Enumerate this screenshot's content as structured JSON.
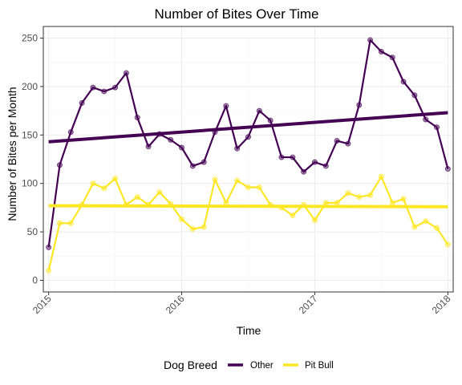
{
  "chart_data": {
    "type": "line",
    "title": "Number of Bites Over Time",
    "xlabel": "Time",
    "ylabel": "Number of Bites per Month",
    "xlim": [
      2014.96,
      2018.04
    ],
    "ylim": [
      -12,
      262
    ],
    "x_ticks": [
      2015,
      2016,
      2017,
      2018
    ],
    "x_tick_labels": [
      "2015",
      "2016",
      "2017",
      "2018"
    ],
    "y_ticks": [
      0,
      50,
      100,
      150,
      200,
      250
    ],
    "y_tick_labels": [
      "0",
      "50",
      "100",
      "150",
      "200",
      "250"
    ],
    "grid": true,
    "legend": {
      "title": "Dog Breed",
      "position": "bottom"
    },
    "series": [
      {
        "name": "Other",
        "color": "#440154",
        "values": [
          34,
          119,
          153,
          183,
          199,
          195,
          199,
          214,
          168,
          138,
          151,
          145,
          137,
          118,
          122,
          153,
          180,
          136,
          148,
          175,
          165,
          127,
          127,
          112,
          122,
          118,
          144,
          141,
          181,
          248,
          236,
          230,
          205,
          191,
          166,
          158,
          115
        ],
        "trend": [
          143,
          173
        ]
      },
      {
        "name": "Pit Bull",
        "color": "#FDE725",
        "values": [
          10,
          59,
          59,
          78,
          100,
          95,
          105,
          78,
          86,
          78,
          91,
          79,
          63,
          53,
          55,
          104,
          80,
          103,
          96,
          96,
          78,
          75,
          67,
          78,
          62,
          80,
          80,
          90,
          86,
          88,
          107,
          80,
          84,
          55,
          61,
          54,
          37
        ],
        "trend": [
          77,
          76
        ]
      }
    ]
  }
}
